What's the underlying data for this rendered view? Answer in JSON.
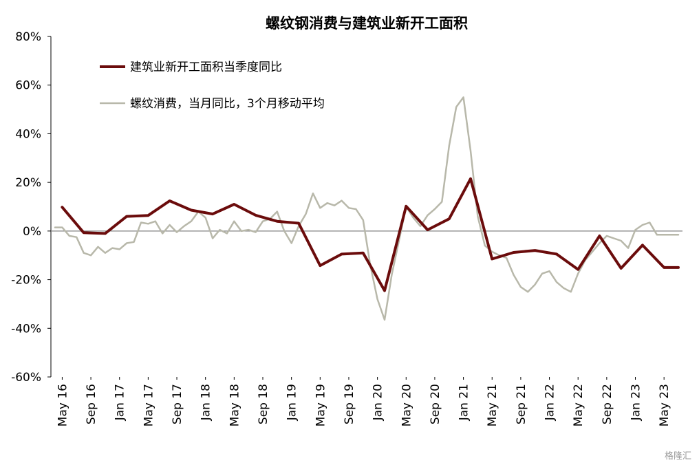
{
  "colors": {
    "construction": "#6b0c0c",
    "rebar": "#b8b8aa",
    "axis": "#000000",
    "zero_line": "#808080"
  },
  "watermark": "格隆汇",
  "chart_data": {
    "type": "line",
    "title": "螺纹钢消费与建筑业新开工面积",
    "xlabel": "",
    "ylabel": "",
    "ylim": [
      -60,
      80
    ],
    "y_ticks": [
      80,
      60,
      40,
      20,
      0,
      -20,
      -40,
      -60
    ],
    "y_tick_labels": [
      "80%",
      "60%",
      "40%",
      "20%",
      "0%",
      "-20%",
      "-40%",
      "-60%"
    ],
    "x_tick_labels": [
      "May 16",
      "Sep 16",
      "Jan 17",
      "May 17",
      "Sep 17",
      "Jan 18",
      "May 18",
      "Sep 18",
      "Jan 19",
      "May 19",
      "Sep 19",
      "Jan 20",
      "May 20",
      "Sep 20",
      "Jan 21",
      "May 21",
      "Sep 21",
      "Jan 22",
      "May 22",
      "Sep 22",
      "Jan 23",
      "May 23"
    ],
    "x_start": "2016-04",
    "x_end": "2023-07",
    "grid": false,
    "legend_position": "top-left",
    "series": [
      {
        "name": "建筑业新开工面积当季度同比",
        "months": [
          "2016-05",
          "2016-08",
          "2016-11",
          "2017-02",
          "2017-05",
          "2017-08",
          "2017-11",
          "2018-02",
          "2018-05",
          "2018-08",
          "2018-11",
          "2019-02",
          "2019-05",
          "2019-08",
          "2019-11",
          "2020-02",
          "2020-05",
          "2020-08",
          "2020-11",
          "2021-02",
          "2021-05",
          "2021-08",
          "2021-11",
          "2022-02",
          "2022-05",
          "2022-08",
          "2022-11",
          "2023-02",
          "2023-05",
          "2023-07"
        ],
        "values": [
          9.8,
          -0.7,
          -1.0,
          6.0,
          6.4,
          12.4,
          8.6,
          7.0,
          11.0,
          6.5,
          4.0,
          3.2,
          -14.2,
          -9.5,
          -9.0,
          -24.5,
          10.2,
          0.5,
          5.0,
          21.5,
          -11.5,
          -8.8,
          -8.0,
          -9.5,
          -15.8,
          -2.0,
          -15.3,
          -5.8,
          -15.0,
          -15.0
        ]
      },
      {
        "name": "螺纹消费，当月同比，3个月移动平均",
        "months": [
          "2016-04",
          "2016-05",
          "2016-06",
          "2016-07",
          "2016-08",
          "2016-09",
          "2016-10",
          "2016-11",
          "2016-12",
          "2017-01",
          "2017-02",
          "2017-03",
          "2017-04",
          "2017-05",
          "2017-06",
          "2017-07",
          "2017-08",
          "2017-09",
          "2017-10",
          "2017-11",
          "2017-12",
          "2018-01",
          "2018-02",
          "2018-03",
          "2018-04",
          "2018-05",
          "2018-06",
          "2018-07",
          "2018-08",
          "2018-09",
          "2018-10",
          "2018-11",
          "2018-12",
          "2019-01",
          "2019-02",
          "2019-03",
          "2019-04",
          "2019-05",
          "2019-06",
          "2019-07",
          "2019-08",
          "2019-09",
          "2019-10",
          "2019-11",
          "2019-12",
          "2020-01",
          "2020-02",
          "2020-03",
          "2020-04",
          "2020-05",
          "2020-06",
          "2020-07",
          "2020-08",
          "2020-09",
          "2020-10",
          "2020-11",
          "2020-12",
          "2021-01",
          "2021-02",
          "2021-03",
          "2021-04",
          "2021-05",
          "2021-06",
          "2021-07",
          "2021-08",
          "2021-09",
          "2021-10",
          "2021-11",
          "2021-12",
          "2022-01",
          "2022-02",
          "2022-03",
          "2022-04",
          "2022-05",
          "2022-06",
          "2022-07",
          "2022-08",
          "2022-09",
          "2022-10",
          "2022-11",
          "2022-12",
          "2023-01",
          "2023-02",
          "2023-03",
          "2023-04",
          "2023-05",
          "2023-06",
          "2023-07"
        ],
        "values": [
          1.5,
          1.5,
          -2.0,
          -2.5,
          -9.0,
          -10.0,
          -6.5,
          -9.0,
          -7.0,
          -7.5,
          -5.0,
          -4.5,
          3.5,
          3.0,
          4.0,
          -1.0,
          2.5,
          -0.5,
          2.0,
          4.0,
          8.0,
          5.5,
          -3.0,
          0.5,
          -1.0,
          4.0,
          0.0,
          0.5,
          -0.5,
          4.0,
          5.0,
          8.0,
          0.0,
          -5.0,
          2.0,
          7.0,
          15.5,
          9.5,
          11.5,
          10.5,
          12.5,
          9.5,
          9.0,
          4.5,
          -14.0,
          -28.0,
          -36.5,
          -18.0,
          -4.0,
          10.0,
          5.5,
          2.0,
          6.5,
          9.0,
          12.0,
          35.0,
          51.0,
          55.0,
          33.0,
          6.0,
          -6.0,
          -8.5,
          -10.0,
          -11.0,
          -18.0,
          -23.0,
          -25.0,
          -22.0,
          -17.5,
          -16.5,
          -21.0,
          -23.5,
          -25.0,
          -17.5,
          -12.0,
          -8.5,
          -5.0,
          -2.0,
          -3.0,
          -4.0,
          -7.0,
          0.5,
          2.5,
          3.5,
          -1.5,
          -1.5,
          -1.5,
          -1.5
        ]
      }
    ]
  }
}
